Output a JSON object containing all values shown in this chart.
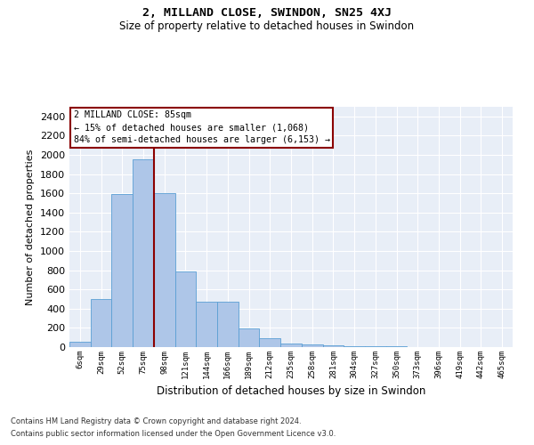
{
  "title_line1": "2, MILLAND CLOSE, SWINDON, SN25 4XJ",
  "title_line2": "Size of property relative to detached houses in Swindon",
  "xlabel": "Distribution of detached houses by size in Swindon",
  "ylabel": "Number of detached properties",
  "footer_line1": "Contains HM Land Registry data © Crown copyright and database right 2024.",
  "footer_line2": "Contains public sector information licensed under the Open Government Licence v3.0.",
  "categories": [
    "6sqm",
    "29sqm",
    "52sqm",
    "75sqm",
    "98sqm",
    "121sqm",
    "144sqm",
    "166sqm",
    "189sqm",
    "212sqm",
    "235sqm",
    "258sqm",
    "281sqm",
    "304sqm",
    "327sqm",
    "350sqm",
    "373sqm",
    "396sqm",
    "419sqm",
    "442sqm",
    "465sqm"
  ],
  "values": [
    60,
    500,
    1590,
    1950,
    1600,
    790,
    470,
    470,
    195,
    90,
    35,
    28,
    20,
    10,
    8,
    5,
    3,
    2,
    1,
    0,
    0
  ],
  "bar_color": "#aec6e8",
  "bar_edge_color": "#5a9fd4",
  "background_color": "#e8eef7",
  "grid_color": "#ffffff",
  "vline_x": 3.5,
  "vline_color": "#8b0000",
  "annotation_title": "2 MILLAND CLOSE: 85sqm",
  "annotation_line1": "← 15% of detached houses are smaller (1,068)",
  "annotation_line2": "84% of semi-detached houses are larger (6,153) →",
  "annotation_box_color": "#ffffff",
  "annotation_box_edge_color": "#8b0000",
  "ylim": [
    0,
    2500
  ],
  "yticks": [
    0,
    200,
    400,
    600,
    800,
    1000,
    1200,
    1400,
    1600,
    1800,
    2000,
    2200,
    2400
  ]
}
